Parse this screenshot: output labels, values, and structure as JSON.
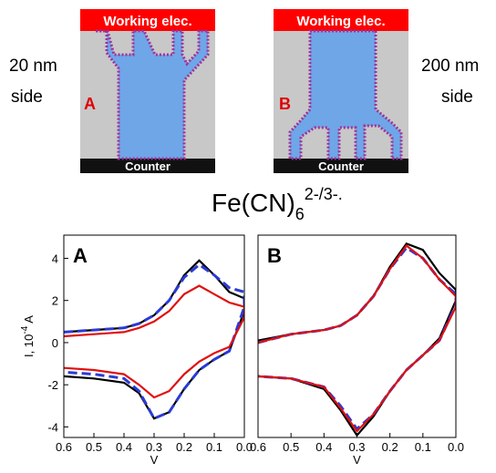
{
  "diagram": {
    "left": {
      "top": "Working elec.",
      "bottom": "Counter",
      "side_size": "20 nm",
      "side_word": "side",
      "letter": "A"
    },
    "right": {
      "top": "Working elec.",
      "bottom": "Counter",
      "side_size": "200 nm",
      "side_word": "side",
      "letter": "B"
    }
  },
  "formula": {
    "base": "Fe(CN)",
    "subscript": "6",
    "superscript": "2-/3-."
  },
  "chart_data": [
    {
      "type": "line",
      "panel_label": "A",
      "xlabel": "V",
      "ylabel_base": "I, 10",
      "ylabel_sup": "-4",
      "ylabel_unit": "A",
      "xlim": [
        0.6,
        0
      ],
      "ylim": [
        -4.5,
        5.1
      ],
      "xticks": [
        0.6,
        0.5,
        0.4,
        0.3,
        0.2,
        0.1,
        {
          "value": 0,
          "label": "0.0"
        }
      ],
      "yticks": [
        -4,
        -2,
        0,
        2,
        4
      ],
      "x": [
        0.6,
        0.5,
        0.4,
        0.35,
        0.3,
        0.25,
        0.2,
        0.15,
        0.1,
        0.05,
        0,
        0,
        0.05,
        0.1,
        0.15,
        0.2,
        0.25,
        0.3,
        0.35,
        0.4,
        0.5,
        0.6
      ],
      "series": [
        {
          "color": "#000000",
          "dashed": false,
          "values": [
            0.5,
            0.6,
            0.7,
            0.9,
            1.3,
            2.0,
            3.2,
            3.9,
            3.2,
            2.4,
            2.1,
            1.5,
            -0.4,
            -0.8,
            -1.3,
            -2.2,
            -3.3,
            -3.6,
            -2.4,
            -1.9,
            -1.7,
            -1.6
          ]
        },
        {
          "color": "#2a3bd6",
          "dashed": true,
          "values": [
            0.5,
            0.6,
            0.7,
            0.9,
            1.3,
            2.0,
            3.1,
            3.7,
            3.2,
            2.6,
            2.4,
            1.7,
            -0.4,
            -0.8,
            -1.3,
            -2.2,
            -3.3,
            -3.6,
            -2.3,
            -1.7,
            -1.5,
            -1.4
          ]
        },
        {
          "color": "#e01010",
          "dashed": false,
          "values": [
            0.3,
            0.4,
            0.5,
            0.7,
            1.0,
            1.5,
            2.3,
            2.7,
            2.3,
            1.9,
            1.7,
            1.2,
            -0.2,
            -0.5,
            -0.9,
            -1.5,
            -2.3,
            -2.6,
            -2.0,
            -1.5,
            -1.3,
            -1.2
          ]
        }
      ]
    },
    {
      "type": "line",
      "panel_label": "B",
      "xlabel": "V",
      "xlim": [
        0.6,
        0
      ],
      "ylim": [
        -4.5,
        5.1
      ],
      "xticks": [
        0.6,
        0.5,
        0.4,
        0.3,
        0.2,
        0.1,
        {
          "value": 0,
          "label": "0.0"
        }
      ],
      "x": [
        0.6,
        0.5,
        0.4,
        0.35,
        0.3,
        0.25,
        0.2,
        0.15,
        0.1,
        0.05,
        0,
        0,
        0.05,
        0.1,
        0.15,
        0.2,
        0.25,
        0.3,
        0.35,
        0.4,
        0.5,
        0.6
      ],
      "series": [
        {
          "color": "#000000",
          "dashed": false,
          "values": [
            0.1,
            0.4,
            0.6,
            0.8,
            1.3,
            2.2,
            3.6,
            4.7,
            4.4,
            3.3,
            2.5,
            2.0,
            0.2,
            -0.6,
            -1.3,
            -2.3,
            -3.5,
            -4.4,
            -3.2,
            -2.2,
            -1.7,
            -1.6
          ]
        },
        {
          "color": "#2a3bd6",
          "dashed": true,
          "values": [
            0.0,
            0.4,
            0.6,
            0.8,
            1.3,
            2.2,
            3.5,
            4.5,
            4.0,
            3.0,
            2.3,
            1.8,
            0.1,
            -0.6,
            -1.3,
            -2.3,
            -3.4,
            -4.1,
            -3.0,
            -2.1,
            -1.7,
            -1.6
          ]
        },
        {
          "color": "#e01010",
          "dashed": false,
          "values": [
            0.0,
            0.4,
            0.6,
            0.8,
            1.3,
            2.2,
            3.5,
            4.6,
            4.0,
            3.0,
            2.2,
            1.7,
            0.1,
            -0.6,
            -1.3,
            -2.3,
            -3.4,
            -4.2,
            -3.1,
            -2.1,
            -1.7,
            -1.6
          ]
        }
      ]
    }
  ]
}
